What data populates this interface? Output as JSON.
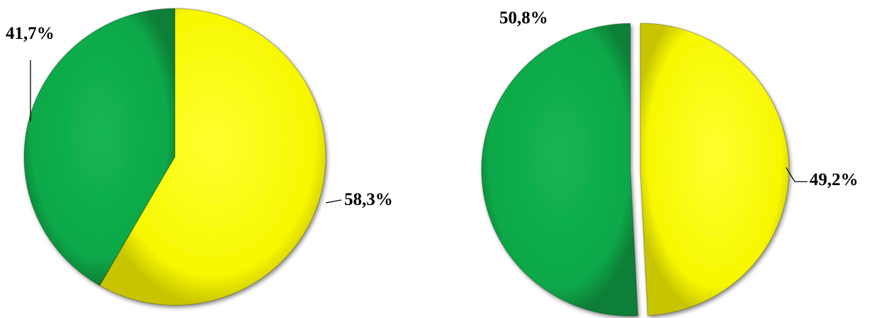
{
  "chart_data": [
    {
      "type": "pie",
      "slices": [
        {
          "value": 41.7,
          "label": "41,7%",
          "color": "#10a94a"
        },
        {
          "value": 58.3,
          "label": "58,3%",
          "color": "#f5f500"
        }
      ]
    },
    {
      "type": "pie",
      "slices": [
        {
          "value": 50.8,
          "label": "50,8%",
          "color": "#10a94a"
        },
        {
          "value": 49.2,
          "label": "49,2%",
          "color": "#f5f500"
        }
      ]
    }
  ]
}
